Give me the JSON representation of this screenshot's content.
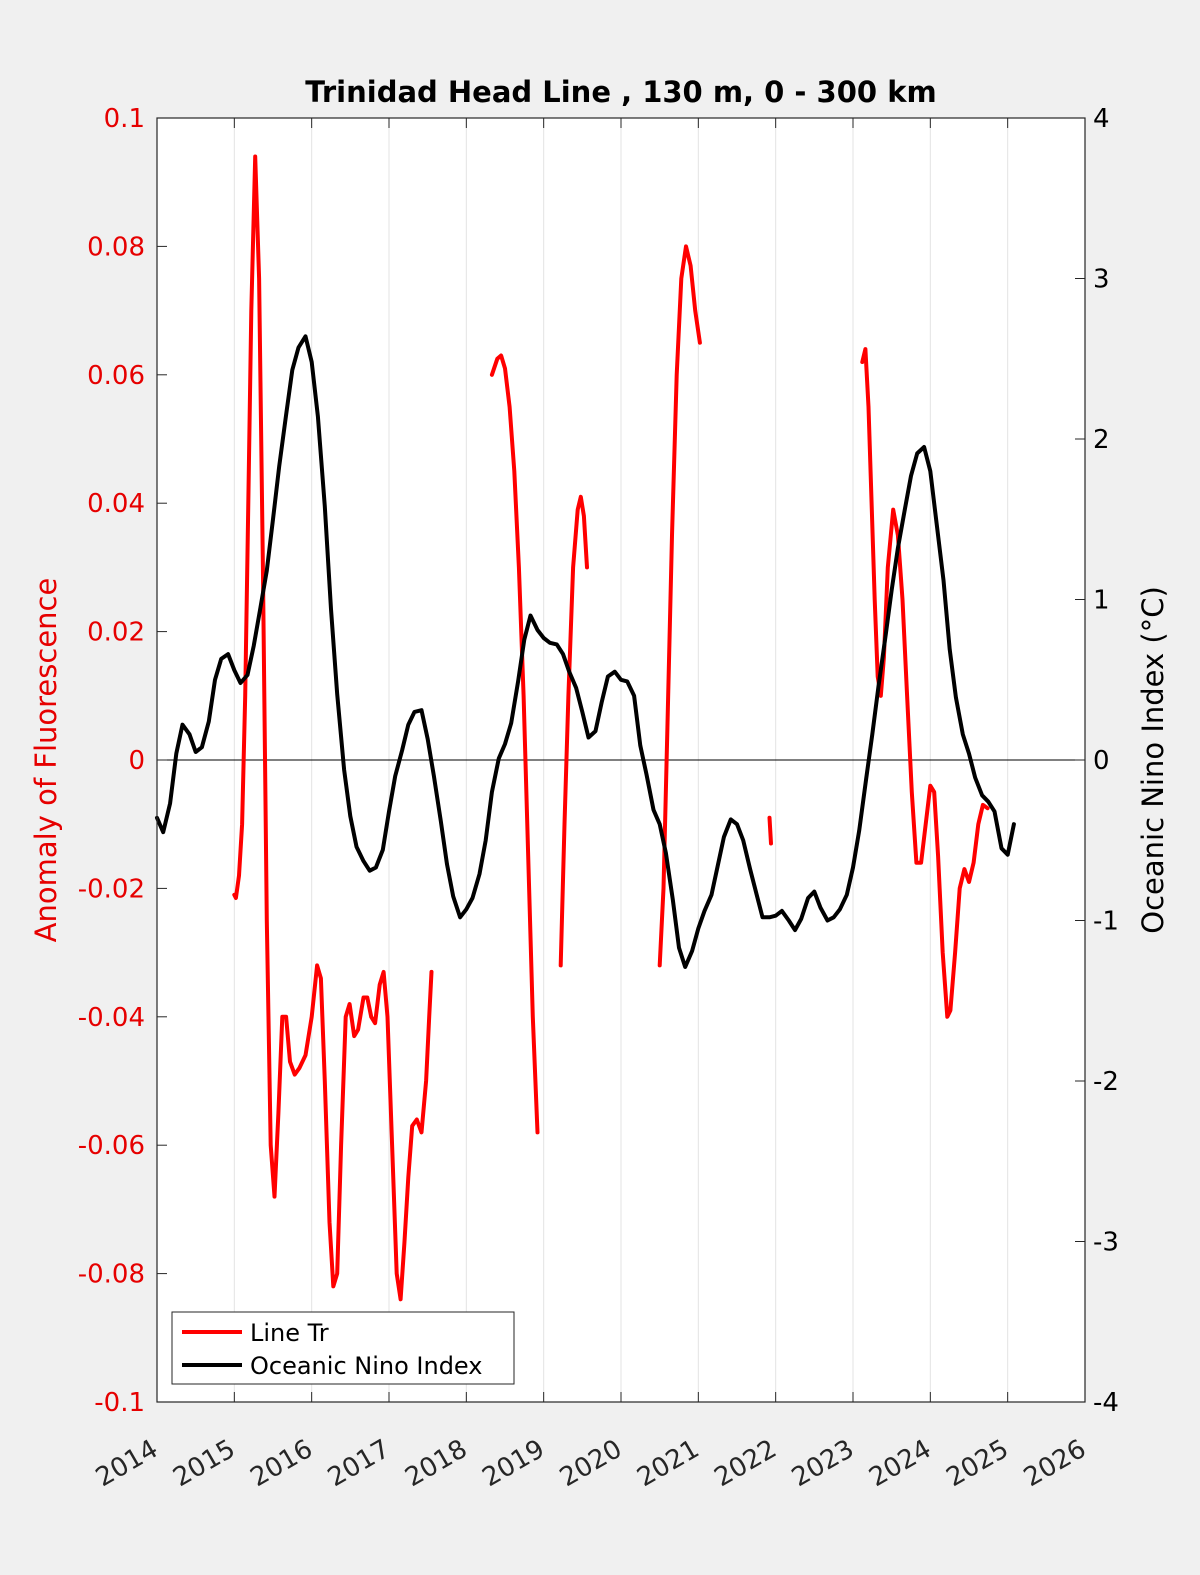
{
  "chart_data": {
    "type": "line",
    "title": "Trinidad Head Line , 130 m, 0 - 300 km",
    "xlim": [
      2014,
      2026
    ],
    "x_ticks": [
      2014,
      2015,
      2016,
      2017,
      2018,
      2019,
      2020,
      2021,
      2022,
      2023,
      2024,
      2025,
      2026
    ],
    "x_tick_labels": [
      "2014",
      "2015",
      "2016",
      "2017",
      "2018",
      "2019",
      "2020",
      "2021",
      "2022",
      "2023",
      "2024",
      "2025",
      "2026"
    ],
    "grid_x": true,
    "zero_line": true,
    "legend_position": "bottom-left",
    "y_left": {
      "label": "Anomaly of Fluorescence",
      "lim": [
        -0.1,
        0.1
      ],
      "ticks": [
        0.1,
        0.08,
        0.06,
        0.04,
        0.02,
        0,
        -0.02,
        -0.04,
        -0.06,
        -0.08,
        -0.1
      ],
      "tick_labels": [
        "0.1",
        "0.08",
        "0.06",
        "0.04",
        "0.02",
        "0",
        "-0.02",
        "-0.04",
        "-0.06",
        "-0.08",
        "-0.1"
      ],
      "color": "#e60000"
    },
    "y_right": {
      "label": "Oceanic Nino Index (°C)",
      "lim": [
        -4,
        4
      ],
      "ticks": [
        4,
        3,
        2,
        1,
        0,
        -1,
        -2,
        -3,
        -4
      ],
      "tick_labels": [
        "4",
        "3",
        "2",
        "1",
        "0",
        "-1",
        "-2",
        "-3",
        "-4"
      ],
      "color": "#000000"
    },
    "series": [
      {
        "name": "Line Tr",
        "axis": "left",
        "color": "#ff0000",
        "segments": [
          [
            [
              2015.0,
              -0.021
            ],
            [
              2015.02,
              -0.0215
            ],
            [
              2015.06,
              -0.018
            ],
            [
              2015.1,
              -0.01
            ],
            [
              2015.14,
              0.01
            ],
            [
              2015.18,
              0.04
            ],
            [
              2015.22,
              0.07
            ],
            [
              2015.27,
              0.094
            ],
            [
              2015.32,
              0.075
            ],
            [
              2015.37,
              0.03
            ],
            [
              2015.42,
              -0.025
            ],
            [
              2015.47,
              -0.06
            ],
            [
              2015.52,
              -0.068
            ],
            [
              2015.57,
              -0.055
            ],
            [
              2015.62,
              -0.04
            ],
            [
              2015.67,
              -0.04
            ],
            [
              2015.72,
              -0.047
            ],
            [
              2015.78,
              -0.049
            ],
            [
              2015.84,
              -0.048
            ],
            [
              2015.92,
              -0.046
            ],
            [
              2016.0,
              -0.04
            ],
            [
              2016.07,
              -0.032
            ],
            [
              2016.12,
              -0.034
            ],
            [
              2016.17,
              -0.05
            ],
            [
              2016.23,
              -0.072
            ],
            [
              2016.28,
              -0.082
            ],
            [
              2016.33,
              -0.08
            ],
            [
              2016.38,
              -0.06
            ],
            [
              2016.44,
              -0.04
            ],
            [
              2016.49,
              -0.038
            ],
            [
              2016.55,
              -0.043
            ],
            [
              2016.6,
              -0.042
            ],
            [
              2016.67,
              -0.037
            ],
            [
              2016.72,
              -0.037
            ],
            [
              2016.77,
              -0.04
            ],
            [
              2016.82,
              -0.041
            ],
            [
              2016.88,
              -0.035
            ],
            [
              2016.93,
              -0.033
            ],
            [
              2016.98,
              -0.04
            ],
            [
              2017.04,
              -0.06
            ],
            [
              2017.1,
              -0.08
            ],
            [
              2017.15,
              -0.084
            ],
            [
              2017.2,
              -0.075
            ],
            [
              2017.25,
              -0.065
            ],
            [
              2017.3,
              -0.057
            ],
            [
              2017.36,
              -0.056
            ],
            [
              2017.42,
              -0.058
            ],
            [
              2017.48,
              -0.05
            ],
            [
              2017.52,
              -0.04
            ],
            [
              2017.55,
              -0.033
            ]
          ],
          [
            [
              2018.33,
              0.06
            ],
            [
              2018.4,
              0.0625
            ],
            [
              2018.45,
              0.063
            ],
            [
              2018.5,
              0.061
            ],
            [
              2018.56,
              0.055
            ],
            [
              2018.62,
              0.045
            ],
            [
              2018.68,
              0.03
            ],
            [
              2018.74,
              0.01
            ],
            [
              2018.8,
              -0.015
            ],
            [
              2018.86,
              -0.04
            ],
            [
              2018.92,
              -0.058
            ]
          ],
          [
            [
              2019.22,
              -0.032
            ],
            [
              2019.27,
              -0.01
            ],
            [
              2019.32,
              0.01
            ],
            [
              2019.38,
              0.03
            ],
            [
              2019.44,
              0.039
            ],
            [
              2019.48,
              0.041
            ],
            [
              2019.52,
              0.038
            ],
            [
              2019.56,
              0.03
            ]
          ],
          [
            [
              2020.5,
              -0.032
            ],
            [
              2020.55,
              -0.02
            ],
            [
              2020.6,
              0.005
            ],
            [
              2020.66,
              0.035
            ],
            [
              2020.72,
              0.06
            ],
            [
              2020.78,
              0.075
            ],
            [
              2020.84,
              0.08
            ],
            [
              2020.9,
              0.077
            ],
            [
              2020.96,
              0.07
            ],
            [
              2021.02,
              0.065
            ]
          ],
          [
            [
              2021.92,
              -0.009
            ],
            [
              2021.94,
              -0.013
            ]
          ],
          [
            [
              2023.12,
              0.062
            ],
            [
              2023.16,
              0.064
            ],
            [
              2023.2,
              0.055
            ],
            [
              2023.24,
              0.04
            ],
            [
              2023.28,
              0.025
            ],
            [
              2023.32,
              0.013
            ],
            [
              2023.36,
              0.01
            ],
            [
              2023.4,
              0.016
            ],
            [
              2023.45,
              0.03
            ],
            [
              2023.52,
              0.039
            ],
            [
              2023.58,
              0.035
            ],
            [
              2023.64,
              0.025
            ],
            [
              2023.7,
              0.01
            ],
            [
              2023.76,
              -0.005
            ],
            [
              2023.82,
              -0.016
            ],
            [
              2023.88,
              -0.016
            ],
            [
              2023.94,
              -0.01
            ],
            [
              2024.0,
              -0.004
            ],
            [
              2024.05,
              -0.005
            ],
            [
              2024.1,
              -0.015
            ],
            [
              2024.16,
              -0.03
            ],
            [
              2024.22,
              -0.04
            ],
            [
              2024.26,
              -0.039
            ],
            [
              2024.32,
              -0.03
            ],
            [
              2024.38,
              -0.02
            ],
            [
              2024.44,
              -0.017
            ],
            [
              2024.5,
              -0.019
            ],
            [
              2024.56,
              -0.016
            ],
            [
              2024.62,
              -0.01
            ],
            [
              2024.68,
              -0.007
            ],
            [
              2024.74,
              -0.0075
            ]
          ]
        ]
      },
      {
        "name": "Oceanic Nino Index",
        "axis": "right",
        "color": "#000000",
        "segments": [
          [
            [
              2014.0,
              -0.36
            ],
            [
              2014.08,
              -0.45
            ],
            [
              2014.17,
              -0.27
            ],
            [
              2014.25,
              0.04
            ],
            [
              2014.33,
              0.22
            ],
            [
              2014.42,
              0.16
            ],
            [
              2014.5,
              0.05
            ],
            [
              2014.58,
              0.08
            ],
            [
              2014.67,
              0.24
            ],
            [
              2014.75,
              0.5
            ],
            [
              2014.83,
              0.63
            ],
            [
              2014.92,
              0.66
            ],
            [
              2015.0,
              0.56
            ],
            [
              2015.08,
              0.48
            ],
            [
              2015.17,
              0.53
            ],
            [
              2015.25,
              0.71
            ],
            [
              2015.33,
              0.93
            ],
            [
              2015.42,
              1.18
            ],
            [
              2015.5,
              1.5
            ],
            [
              2015.58,
              1.83
            ],
            [
              2015.67,
              2.15
            ],
            [
              2015.75,
              2.43
            ],
            [
              2015.83,
              2.57
            ],
            [
              2015.92,
              2.64
            ],
            [
              2016.0,
              2.48
            ],
            [
              2016.08,
              2.14
            ],
            [
              2016.17,
              1.58
            ],
            [
              2016.25,
              0.94
            ],
            [
              2016.33,
              0.41
            ],
            [
              2016.42,
              -0.06
            ],
            [
              2016.5,
              -0.35
            ],
            [
              2016.58,
              -0.54
            ],
            [
              2016.67,
              -0.63
            ],
            [
              2016.75,
              -0.69
            ],
            [
              2016.83,
              -0.67
            ],
            [
              2016.92,
              -0.56
            ],
            [
              2017.0,
              -0.32
            ],
            [
              2017.08,
              -0.1
            ],
            [
              2017.17,
              0.06
            ],
            [
              2017.25,
              0.22
            ],
            [
              2017.33,
              0.3
            ],
            [
              2017.42,
              0.31
            ],
            [
              2017.5,
              0.13
            ],
            [
              2017.58,
              -0.1
            ],
            [
              2017.67,
              -0.38
            ],
            [
              2017.75,
              -0.65
            ],
            [
              2017.83,
              -0.85
            ],
            [
              2017.92,
              -0.98
            ],
            [
              2018.0,
              -0.93
            ],
            [
              2018.08,
              -0.86
            ],
            [
              2018.17,
              -0.71
            ],
            [
              2018.25,
              -0.5
            ],
            [
              2018.33,
              -0.2
            ],
            [
              2018.42,
              0.01
            ],
            [
              2018.5,
              0.1
            ],
            [
              2018.58,
              0.23
            ],
            [
              2018.67,
              0.49
            ],
            [
              2018.75,
              0.75
            ],
            [
              2018.83,
              0.9
            ],
            [
              2018.92,
              0.81
            ],
            [
              2019.0,
              0.76
            ],
            [
              2019.08,
              0.73
            ],
            [
              2019.17,
              0.72
            ],
            [
              2019.25,
              0.66
            ],
            [
              2019.33,
              0.55
            ],
            [
              2019.42,
              0.45
            ],
            [
              2019.5,
              0.3
            ],
            [
              2019.58,
              0.14
            ],
            [
              2019.67,
              0.18
            ],
            [
              2019.75,
              0.36
            ],
            [
              2019.83,
              0.52
            ],
            [
              2019.92,
              0.55
            ],
            [
              2020.0,
              0.5
            ],
            [
              2020.08,
              0.49
            ],
            [
              2020.17,
              0.4
            ],
            [
              2020.25,
              0.09
            ],
            [
              2020.33,
              -0.09
            ],
            [
              2020.42,
              -0.31
            ],
            [
              2020.5,
              -0.4
            ],
            [
              2020.58,
              -0.58
            ],
            [
              2020.67,
              -0.87
            ],
            [
              2020.75,
              -1.17
            ],
            [
              2020.83,
              -1.29
            ],
            [
              2020.92,
              -1.19
            ],
            [
              2021.0,
              -1.05
            ],
            [
              2021.08,
              -0.94
            ],
            [
              2021.17,
              -0.84
            ],
            [
              2021.25,
              -0.66
            ],
            [
              2021.33,
              -0.48
            ],
            [
              2021.42,
              -0.37
            ],
            [
              2021.5,
              -0.4
            ],
            [
              2021.58,
              -0.5
            ],
            [
              2021.67,
              -0.68
            ],
            [
              2021.75,
              -0.83
            ],
            [
              2021.83,
              -0.98
            ],
            [
              2021.92,
              -0.98
            ],
            [
              2022.0,
              -0.97
            ],
            [
              2022.08,
              -0.94
            ],
            [
              2022.17,
              -1.0
            ],
            [
              2022.25,
              -1.06
            ],
            [
              2022.33,
              -0.99
            ],
            [
              2022.42,
              -0.86
            ],
            [
              2022.5,
              -0.82
            ],
            [
              2022.58,
              -0.92
            ],
            [
              2022.67,
              -1.0
            ],
            [
              2022.75,
              -0.98
            ],
            [
              2022.83,
              -0.93
            ],
            [
              2022.92,
              -0.84
            ],
            [
              2023.0,
              -0.67
            ],
            [
              2023.08,
              -0.44
            ],
            [
              2023.17,
              -0.12
            ],
            [
              2023.25,
              0.16
            ],
            [
              2023.33,
              0.46
            ],
            [
              2023.42,
              0.77
            ],
            [
              2023.5,
              1.06
            ],
            [
              2023.58,
              1.32
            ],
            [
              2023.67,
              1.56
            ],
            [
              2023.75,
              1.77
            ],
            [
              2023.83,
              1.91
            ],
            [
              2023.92,
              1.95
            ],
            [
              2024.0,
              1.8
            ],
            [
              2024.08,
              1.48
            ],
            [
              2024.17,
              1.12
            ],
            [
              2024.25,
              0.69
            ],
            [
              2024.33,
              0.39
            ],
            [
              2024.42,
              0.16
            ],
            [
              2024.5,
              0.04
            ],
            [
              2024.58,
              -0.11
            ],
            [
              2024.67,
              -0.22
            ],
            [
              2024.75,
              -0.26
            ],
            [
              2024.83,
              -0.32
            ],
            [
              2024.92,
              -0.55
            ],
            [
              2025.0,
              -0.59
            ],
            [
              2025.08,
              -0.4
            ]
          ]
        ]
      }
    ]
  }
}
